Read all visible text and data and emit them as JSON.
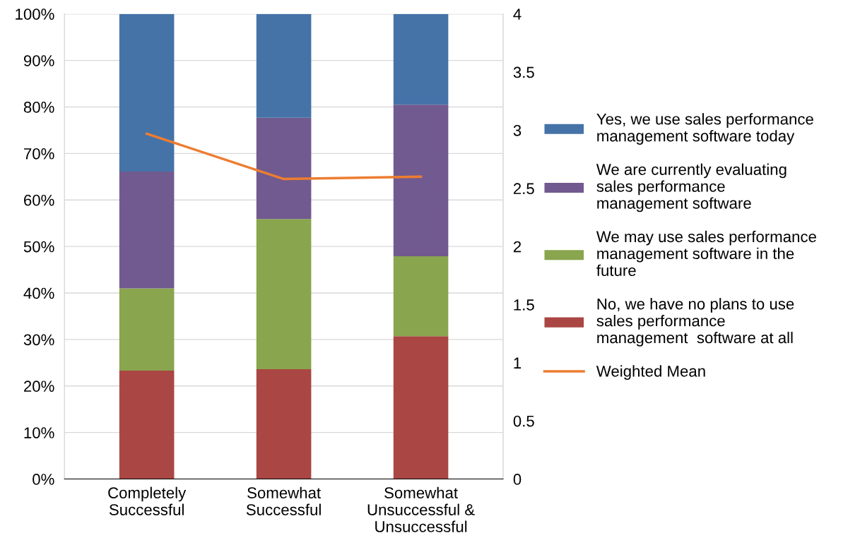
{
  "chart_data": {
    "type": "bar",
    "stacked": true,
    "categories": [
      "Completely\nSuccessful",
      "Somewhat\nSuccessful",
      "Somewhat\nUnsuccessful &\nUnsuccessful"
    ],
    "series": [
      {
        "name": "No, we have no plans to use\nsales performance\nmanagement  software at all",
        "color": "#aa4643",
        "values": [
          23.3,
          23.6,
          30.7
        ]
      },
      {
        "name": "We may use sales performance\nmanagement software in the\nfuture",
        "color": "#89a54e",
        "values": [
          17.7,
          32.3,
          17.2
        ]
      },
      {
        "name": "We are currently evaluating\nsales performance\nmanagement software",
        "color": "#715a8f",
        "values": [
          25.1,
          21.8,
          32.6
        ]
      },
      {
        "name": "Yes, we use sales performance\nmanagement software today",
        "color": "#4573a7",
        "values": [
          33.9,
          22.3,
          19.5
        ]
      },
      {
        "name": "Weighted Mean",
        "type": "line",
        "axis": "y2",
        "color": "#ed7d31",
        "values": [
          2.97,
          2.58,
          2.6
        ]
      }
    ],
    "ylim": [
      0,
      100
    ],
    "yticks": [
      {
        "value": 0,
        "label": "0%"
      },
      {
        "value": 10,
        "label": "10%"
      },
      {
        "value": 20,
        "label": "20%"
      },
      {
        "value": 30,
        "label": "30%"
      },
      {
        "value": 40,
        "label": "40%"
      },
      {
        "value": 50,
        "label": "50%"
      },
      {
        "value": 60,
        "label": "60%"
      },
      {
        "value": 70,
        "label": "70%"
      },
      {
        "value": 80,
        "label": "80%"
      },
      {
        "value": 90,
        "label": "90%"
      },
      {
        "value": 100,
        "label": "100%"
      }
    ],
    "y2lim": [
      0,
      4
    ],
    "y2ticks": [
      0,
      0.5,
      1,
      1.5,
      2,
      2.5,
      3,
      3.5,
      4
    ],
    "grid": "y",
    "legend": "right",
    "marker": "none"
  }
}
